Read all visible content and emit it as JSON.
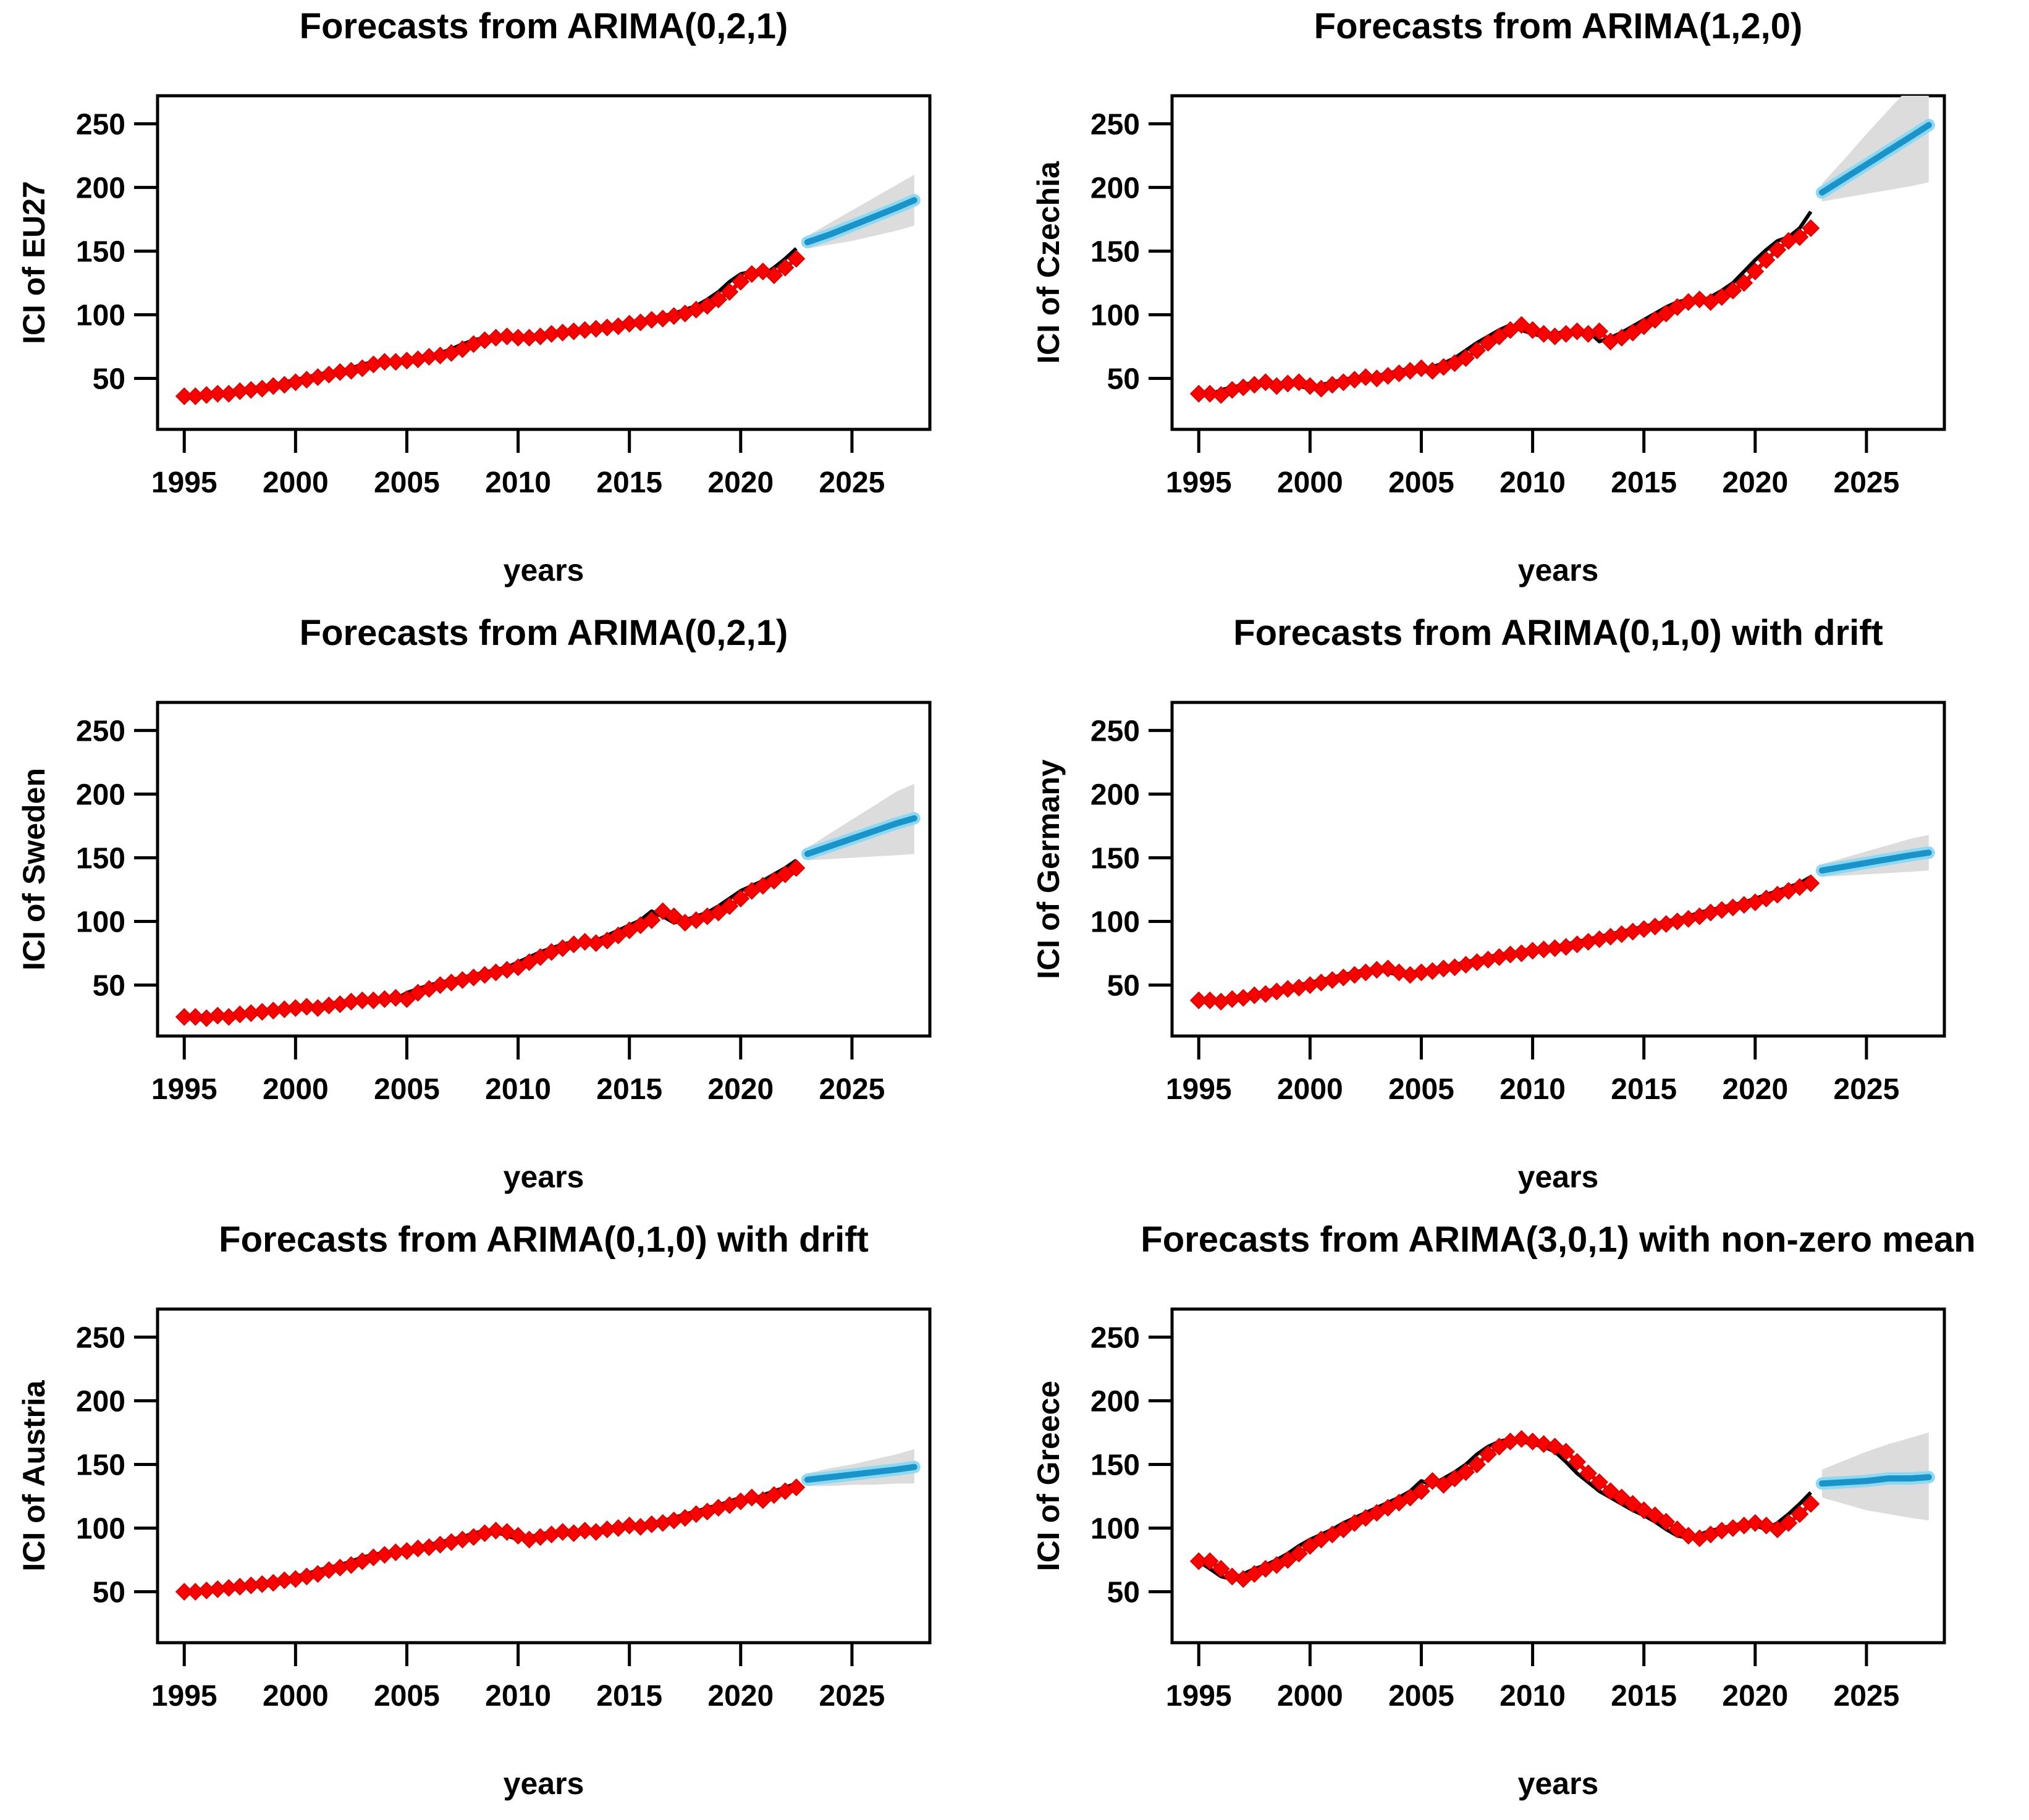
{
  "figure": {
    "kind": "R forecast plot grid",
    "rows": 3,
    "cols": 2,
    "background": "#ffffff"
  },
  "colors": {
    "observed_line": "#000000",
    "fitted_line": "#f20000",
    "fitted_marker_fill": "#ff0000",
    "fitted_marker_edge": "#dd0000",
    "forecast_core": "#1a94c8",
    "forecast_halo": "#8fd8f2",
    "confidence_band": "#dcdcdc",
    "axis": "#000000"
  },
  "fitted_rule": "lag1",
  "chart_data": [
    {
      "type": "line",
      "title": "Forecasts from ARIMA(0,2,1)",
      "ylabel": "ICI of EU27",
      "xlabel": "years",
      "xticks": [
        1995,
        2000,
        2005,
        2010,
        2015,
        2020,
        2025
      ],
      "yticks": [
        50,
        100,
        150,
        200,
        250
      ],
      "xlim": [
        1993.8,
        2028.5
      ],
      "ylim": [
        10,
        272
      ],
      "x_start": 1995,
      "x_step": 0.5,
      "observed": [
        36,
        37,
        38,
        38,
        40,
        41,
        42,
        44,
        45,
        47,
        49,
        51,
        53,
        55,
        56,
        58,
        61,
        63,
        63,
        64,
        65,
        67,
        68,
        70,
        73,
        77,
        80,
        82,
        83,
        82,
        82,
        83,
        85,
        86,
        87,
        88,
        89,
        90,
        91,
        93,
        94,
        96,
        97,
        99,
        101,
        104,
        107,
        112,
        118,
        126,
        132,
        134,
        131,
        137,
        144,
        152
      ],
      "forecast": {
        "x": [
          2023,
          2024,
          2025,
          2026,
          2027,
          2027.8
        ],
        "mean": [
          157,
          163,
          170,
          177,
          184,
          190
        ],
        "lower": [
          152,
          155,
          158,
          162,
          166,
          170
        ],
        "upper": [
          162,
          172,
          182,
          192,
          202,
          210
        ]
      }
    },
    {
      "type": "line",
      "title": "Forecasts from ARIMA(1,2,0)",
      "ylabel": "ICI of Czechia",
      "xlabel": "years",
      "xticks": [
        1995,
        2000,
        2005,
        2010,
        2015,
        2020,
        2025
      ],
      "yticks": [
        50,
        100,
        150,
        200,
        250
      ],
      "xlim": [
        1993.8,
        2028.5
      ],
      "ylim": [
        10,
        272
      ],
      "x_start": 1995,
      "x_step": 0.5,
      "observed": [
        38,
        37,
        41,
        43,
        45,
        47,
        44,
        46,
        47,
        44,
        42,
        45,
        47,
        49,
        51,
        50,
        52,
        54,
        56,
        58,
        56,
        59,
        62,
        66,
        72,
        78,
        83,
        88,
        92,
        88,
        85,
        83,
        85,
        87,
        85,
        87,
        79,
        82,
        86,
        91,
        96,
        101,
        106,
        110,
        112,
        110,
        114,
        119,
        125,
        134,
        143,
        151,
        158,
        161,
        168,
        181
      ],
      "forecast": {
        "x": [
          2023,
          2024,
          2025,
          2026,
          2027,
          2027.8
        ],
        "mean": [
          196,
          207,
          218,
          229,
          240,
          249
        ],
        "lower": [
          189,
          192,
          195,
          198,
          201,
          204
        ],
        "upper": [
          203,
          222,
          242,
          261,
          280,
          293
        ]
      }
    },
    {
      "type": "line",
      "title": "Forecasts from ARIMA(0,2,1)",
      "ylabel": "ICI of Sweden",
      "xlabel": "years",
      "xticks": [
        1995,
        2000,
        2005,
        2010,
        2015,
        2020,
        2025
      ],
      "yticks": [
        50,
        100,
        150,
        200,
        250
      ],
      "xlim": [
        1993.8,
        2028.5
      ],
      "ylim": [
        10,
        272
      ],
      "x_start": 1995,
      "x_step": 0.5,
      "observed": [
        25,
        24,
        26,
        25,
        27,
        28,
        29,
        30,
        31,
        32,
        33,
        32,
        34,
        35,
        37,
        38,
        38,
        39,
        40,
        39,
        44,
        47,
        50,
        52,
        54,
        56,
        58,
        60,
        62,
        64,
        68,
        72,
        76,
        79,
        82,
        84,
        83,
        85,
        89,
        93,
        97,
        101,
        108,
        104,
        99,
        101,
        104,
        107,
        112,
        118,
        124,
        128,
        132,
        137,
        142,
        148
      ],
      "forecast": {
        "x": [
          2023,
          2024,
          2025,
          2026,
          2027,
          2027.8
        ],
        "mean": [
          153,
          159,
          165,
          171,
          177,
          181
        ],
        "lower": [
          148,
          149,
          150,
          151,
          152,
          153
        ],
        "upper": [
          158,
          169,
          180,
          191,
          202,
          208
        ]
      }
    },
    {
      "type": "line",
      "title": "Forecasts from ARIMA(0,1,0) with drift",
      "ylabel": "ICI of Germany",
      "xlabel": "years",
      "xticks": [
        1995,
        2000,
        2005,
        2010,
        2015,
        2020,
        2025
      ],
      "yticks": [
        50,
        100,
        150,
        200,
        250
      ],
      "xlim": [
        1993.8,
        2028.5
      ],
      "ylim": [
        10,
        272
      ],
      "x_start": 1995,
      "x_step": 0.5,
      "observed": [
        38,
        37,
        39,
        40,
        42,
        43,
        45,
        47,
        48,
        50,
        52,
        54,
        56,
        58,
        60,
        62,
        63,
        60,
        58,
        60,
        61,
        63,
        64,
        66,
        68,
        70,
        72,
        74,
        75,
        77,
        78,
        79,
        80,
        82,
        84,
        86,
        88,
        90,
        92,
        94,
        96,
        98,
        100,
        102,
        104,
        107,
        109,
        111,
        113,
        115,
        118,
        121,
        124,
        127,
        130,
        135
      ],
      "forecast": {
        "x": [
          2023,
          2024,
          2025,
          2026,
          2027,
          2027.8
        ],
        "mean": [
          140,
          143,
          146,
          149,
          152,
          154
        ],
        "lower": [
          135,
          136,
          137,
          138,
          139,
          140
        ],
        "upper": [
          145,
          150,
          155,
          160,
          165,
          168
        ]
      }
    },
    {
      "type": "line",
      "title": "Forecasts from ARIMA(0,1,0) with drift",
      "ylabel": "ICI of Austria",
      "xlabel": "years",
      "xticks": [
        1995,
        2000,
        2005,
        2010,
        2015,
        2020,
        2025
      ],
      "yticks": [
        50,
        100,
        150,
        200,
        250
      ],
      "xlim": [
        1993.8,
        2028.5
      ],
      "ylim": [
        10,
        272
      ],
      "x_start": 1995,
      "x_step": 0.5,
      "observed": [
        50,
        51,
        52,
        53,
        54,
        55,
        56,
        57,
        59,
        60,
        62,
        64,
        67,
        69,
        71,
        74,
        77,
        79,
        81,
        82,
        84,
        85,
        87,
        89,
        91,
        93,
        96,
        98,
        97,
        94,
        91,
        93,
        95,
        97,
        96,
        98,
        97,
        99,
        100,
        102,
        101,
        103,
        104,
        106,
        108,
        111,
        113,
        116,
        118,
        121,
        124,
        122,
        126,
        129,
        132,
        135
      ],
      "forecast": {
        "x": [
          2023,
          2024,
          2025,
          2026,
          2027,
          2027.8
        ],
        "mean": [
          138,
          140,
          142,
          144,
          146,
          148
        ],
        "lower": [
          133,
          133,
          134,
          134,
          135,
          135
        ],
        "upper": [
          143,
          147,
          150,
          154,
          158,
          162
        ]
      }
    },
    {
      "type": "line",
      "title": "Forecasts from ARIMA(3,0,1) with non-zero mean",
      "ylabel": "ICI of Greece",
      "xlabel": "years",
      "xticks": [
        1995,
        2000,
        2005,
        2010,
        2015,
        2020,
        2025
      ],
      "yticks": [
        50,
        100,
        150,
        200,
        250
      ],
      "xlim": [
        1993.8,
        2028.5
      ],
      "ylim": [
        10,
        272
      ],
      "x_start": 1995,
      "x_step": 0.5,
      "observed": [
        74,
        68,
        62,
        60,
        64,
        68,
        71,
        75,
        80,
        86,
        91,
        95,
        99,
        104,
        108,
        112,
        116,
        120,
        124,
        129,
        137,
        134,
        139,
        144,
        150,
        158,
        164,
        168,
        170,
        168,
        166,
        164,
        160,
        152,
        143,
        136,
        129,
        124,
        119,
        114,
        110,
        105,
        99,
        94,
        92,
        95,
        98,
        100,
        102,
        104,
        102,
        99,
        104,
        111,
        119,
        128
      ],
      "forecast": {
        "x": [
          2023,
          2024,
          2025,
          2026,
          2027,
          2027.8
        ],
        "mean": [
          135,
          136,
          137,
          139,
          139,
          140
        ],
        "lower": [
          124,
          119,
          114,
          111,
          108,
          106
        ],
        "upper": [
          146,
          153,
          160,
          166,
          171,
          175
        ]
      }
    }
  ]
}
